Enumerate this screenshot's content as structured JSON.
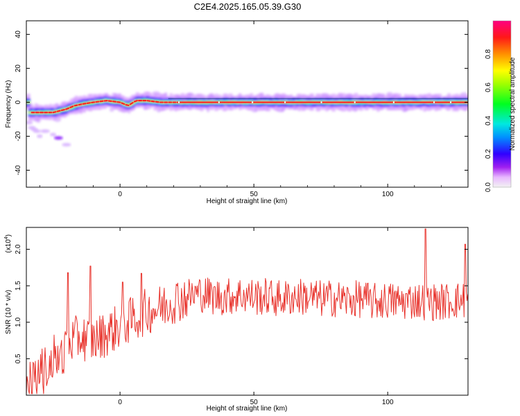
{
  "figure": {
    "title": "C2E4.2025.165.05.39.G30"
  },
  "chart_data": [
    {
      "type": "heatmap",
      "xlabel": "Height of straight line (km)",
      "ylabel": "Frequency (Hz)",
      "xlim": [
        -35,
        130
      ],
      "ylim": [
        -50,
        48
      ],
      "xticks": [
        0,
        50,
        100
      ],
      "yticks": [
        -40,
        -20,
        0,
        20,
        40
      ],
      "colorbar": {
        "label": "Normalized spectral amplitude",
        "range": [
          0,
          1
        ],
        "ticks": [
          "0.0",
          "0.2",
          "0.4",
          "0.6",
          "0.8"
        ],
        "tick_values": [
          0.0,
          0.2,
          0.4,
          0.6,
          0.8
        ]
      },
      "ridge": {
        "x": [
          -34,
          -30,
          -25,
          -20,
          -17,
          -14,
          -10,
          -5,
          0,
          3,
          6,
          10,
          15,
          20,
          130
        ],
        "y": [
          -6,
          -6,
          -6,
          -4,
          -2,
          -1,
          0,
          1,
          0,
          -2,
          1,
          1,
          0,
          0,
          0
        ]
      },
      "low_frequency_scatter": {
        "x": [
          -34,
          -33,
          -32,
          -31,
          -30,
          -28,
          -25,
          -23,
          -20
        ],
        "y": [
          -12,
          -15,
          -16,
          -17,
          -20,
          -17,
          -19,
          -21,
          -25
        ]
      }
    },
    {
      "type": "line",
      "xlabel": "Height of straight line (km)",
      "ylabel": "SNR (10 * v/v)",
      "multiplier": "(x10",
      "multiplier_exp": "4",
      "xlim": [
        -35,
        130
      ],
      "ylim": [
        0,
        2.3
      ],
      "xticks": [
        0,
        50,
        100
      ],
      "yticks": [
        "0.5",
        "1.0",
        "1.5",
        "2.0"
      ],
      "ytick_values": [
        0.5,
        1.0,
        1.5,
        2.0
      ],
      "color": "#e8322b",
      "series": [
        {
          "x": [
            -35,
            -30,
            -25,
            -20,
            -15,
            -10,
            -5,
            0,
            5,
            10,
            15,
            20,
            25,
            30,
            35,
            40,
            45,
            50,
            55,
            60,
            65,
            70,
            75,
            80,
            85,
            90,
            95,
            100,
            105,
            110,
            115,
            120,
            125,
            130
          ],
          "y": [
            0.15,
            0.35,
            0.55,
            0.7,
            0.8,
            0.75,
            0.85,
            0.95,
            1.05,
            1.15,
            1.2,
            1.3,
            1.35,
            1.4,
            1.35,
            1.35,
            1.38,
            1.35,
            1.35,
            1.32,
            1.35,
            1.35,
            1.32,
            1.33,
            1.3,
            1.32,
            1.28,
            1.3,
            1.28,
            1.3,
            1.28,
            1.28,
            1.3,
            1.3
          ]
        }
      ],
      "spikes": [
        {
          "x": -19.5,
          "y": 1.68
        },
        {
          "x": -11,
          "y": 1.77
        },
        {
          "x": 1,
          "y": 1.55
        },
        {
          "x": 8,
          "y": 1.67
        },
        {
          "x": 114,
          "y": 2.28
        },
        {
          "x": 129,
          "y": 2.07
        }
      ]
    }
  ]
}
